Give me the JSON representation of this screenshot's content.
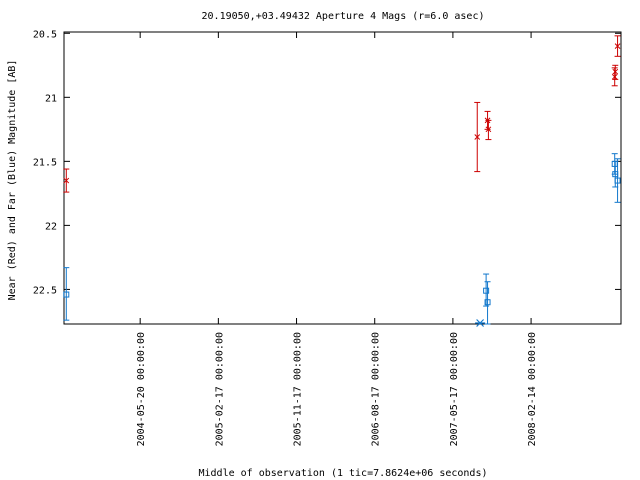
{
  "chart_data": {
    "type": "scatter",
    "title": "20.19050,+03.49432   Aperture 4 Mags (r=6.0 asec)",
    "xlabel": "Middle of observation (1 tic=7.8624e+06 seconds)",
    "ylabel": "Near (Red) and Far (Blue) Magnitude [AB]",
    "y_inverted": true,
    "ylim": [
      22.77,
      20.49
    ],
    "xlim": [
      "2003-08-28",
      "2008-12-24"
    ],
    "x_ticks": [
      "2004-05-20 00:00:00",
      "2005-02-17 00:00:00",
      "2005-11-17 00:00:00",
      "2006-08-17 00:00:00",
      "2007-05-17 00:00:00",
      "2008-02-14 00:00:00"
    ],
    "y_ticks": [
      "20.5",
      "21",
      "21.5",
      "22",
      "22.5"
    ],
    "grid": false,
    "legend": "none",
    "series": [
      {
        "color": "#cc0000",
        "marker": "x",
        "points": [
          {
            "x": "2003-09-05",
            "y": 21.65,
            "err_lo": 21.56,
            "err_hi": 21.74
          },
          {
            "x": "2007-08-10",
            "y": 21.31,
            "err_lo": 21.04,
            "err_hi": 21.58
          },
          {
            "x": "2007-09-15",
            "y": 21.18,
            "err_lo": 21.11,
            "err_hi": 21.25
          },
          {
            "x": "2007-09-18",
            "y": 21.25,
            "err_lo": 21.18,
            "err_hi": 21.33
          },
          {
            "x": "2008-12-02",
            "y": 20.84,
            "err_lo": 20.77,
            "err_hi": 20.91
          },
          {
            "x": "2008-12-04",
            "y": 20.8,
            "err_lo": 20.75,
            "err_hi": 20.86
          },
          {
            "x": "2008-12-12",
            "y": 20.6,
            "err_lo": 20.52,
            "err_hi": 20.68
          }
        ]
      },
      {
        "color": "#1177cc",
        "marker": "square",
        "points": [
          {
            "x": "2003-09-05",
            "y": 22.54,
            "err_lo": 22.33,
            "err_hi": 22.74
          },
          {
            "x": "2007-09-10",
            "y": 22.51,
            "err_lo": 22.38,
            "err_hi": 22.63
          },
          {
            "x": "2007-09-15",
            "y": 22.6,
            "err_lo": 22.44,
            "err_hi": 22.77
          },
          {
            "x": "2008-12-02",
            "y": 21.52,
            "err_lo": 21.44,
            "err_hi": 21.6
          },
          {
            "x": "2008-12-04",
            "y": 21.6,
            "err_lo": 21.5,
            "err_hi": 21.7
          },
          {
            "x": "2008-12-12",
            "y": 21.65,
            "err_lo": 21.48,
            "err_hi": 21.82
          }
        ],
        "limits": [
          {
            "x": "2007-08-20",
            "y": 22.77,
            "marker": "asterisk"
          }
        ]
      }
    ]
  }
}
